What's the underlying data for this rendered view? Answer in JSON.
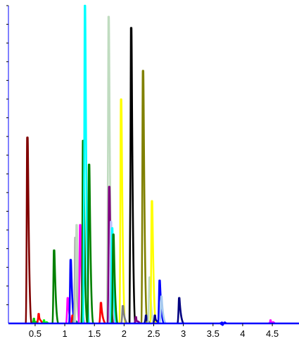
{
  "chart_data": {
    "type": "line",
    "title": "",
    "xlabel": "",
    "ylabel": "",
    "xlim": [
      0.05,
      4.95
    ],
    "ylim": [
      0,
      100
    ],
    "grid": false,
    "legend": "none",
    "x_ticks": [
      {
        "value": 0.5,
        "label": "0.5"
      },
      {
        "value": 1,
        "label": "1"
      },
      {
        "value": 1.5,
        "label": "1.5"
      },
      {
        "value": 2,
        "label": "2"
      },
      {
        "value": 2.5,
        "label": "2.5"
      },
      {
        "value": 3,
        "label": "3"
      },
      {
        "value": 3.5,
        "label": "3.5"
      },
      {
        "value": 4,
        "label": "4"
      },
      {
        "value": 4.5,
        "label": "4.5"
      }
    ],
    "y_minor_tick_count": 17,
    "axis_color": "#0000ff",
    "series": [
      {
        "color": "#800000",
        "peak_x": 0.37,
        "height": 58.5
      },
      {
        "color": "#00cc00",
        "peak_x": 0.48,
        "height": 1.5
      },
      {
        "color": "#ff0000",
        "peak_x": 0.56,
        "height": 3.0
      },
      {
        "color": "#00ff00",
        "peak_x": 0.65,
        "height": 1.0
      },
      {
        "color": "#008000",
        "peak_x": 0.82,
        "height": 23.0
      },
      {
        "color": "#ff00ff",
        "peak_x": 1.05,
        "height": 8.0
      },
      {
        "color": "#0000ff",
        "peak_x": 1.1,
        "height": 20.0
      },
      {
        "color": "#ff0000",
        "peak_x": 1.13,
        "height": 2.5
      },
      {
        "color": "#008080",
        "peak_x": 1.16,
        "height": 2.0
      },
      {
        "color": "#a9a9a9",
        "peak_x": 1.18,
        "height": 27.0
      },
      {
        "color": "#c0dcc0",
        "peak_x": 1.2,
        "height": 31.0
      },
      {
        "color": "#ff00ff",
        "peak_x": 1.26,
        "height": 31.0
      },
      {
        "color": "#008000",
        "peak_x": 1.31,
        "height": 57.5
      },
      {
        "color": "#00ffff",
        "peak_x": 1.34,
        "height": 100.0
      },
      {
        "color": "#008000",
        "peak_x": 1.41,
        "height": 50.0
      },
      {
        "color": "#ff0000",
        "peak_x": 1.61,
        "height": 6.5
      },
      {
        "color": "#c0dcc0",
        "peak_x": 1.74,
        "height": 96.5
      },
      {
        "color": "#800080",
        "peak_x": 1.75,
        "height": 43.0
      },
      {
        "color": "#c0c0ff",
        "peak_x": 1.78,
        "height": 32.0
      },
      {
        "color": "#00ffff",
        "peak_x": 1.8,
        "height": 30.0
      },
      {
        "color": "#008000",
        "peak_x": 1.82,
        "height": 28.0
      },
      {
        "color": "#ffff00",
        "peak_x": 1.95,
        "height": 70.5
      },
      {
        "color": "#808080",
        "peak_x": 1.98,
        "height": 5.5
      },
      {
        "color": "#000000",
        "peak_x": 2.12,
        "height": 93.0
      },
      {
        "color": "#800080",
        "peak_x": 2.2,
        "height": 2.0
      },
      {
        "color": "#808000",
        "peak_x": 2.32,
        "height": 79.5
      },
      {
        "color": "#000080",
        "peak_x": 2.37,
        "height": 2.5
      },
      {
        "color": "#c0dcc0",
        "peak_x": 2.43,
        "height": 14.5
      },
      {
        "color": "#ffff00",
        "peak_x": 2.47,
        "height": 38.5
      },
      {
        "color": "#000080",
        "peak_x": 2.52,
        "height": 2.5
      },
      {
        "color": "#0000ff",
        "peak_x": 2.6,
        "height": 13.5
      },
      {
        "color": "#a6caf0",
        "peak_x": 2.63,
        "height": 8.5
      },
      {
        "color": "#000080",
        "peak_x": 2.93,
        "height": 8.0
      },
      {
        "color": "#0000ff",
        "peak_x": 3.65,
        "height": 0.3
      },
      {
        "color": "#ff00ff",
        "peak_x": 4.47,
        "height": 1.0
      }
    ]
  }
}
